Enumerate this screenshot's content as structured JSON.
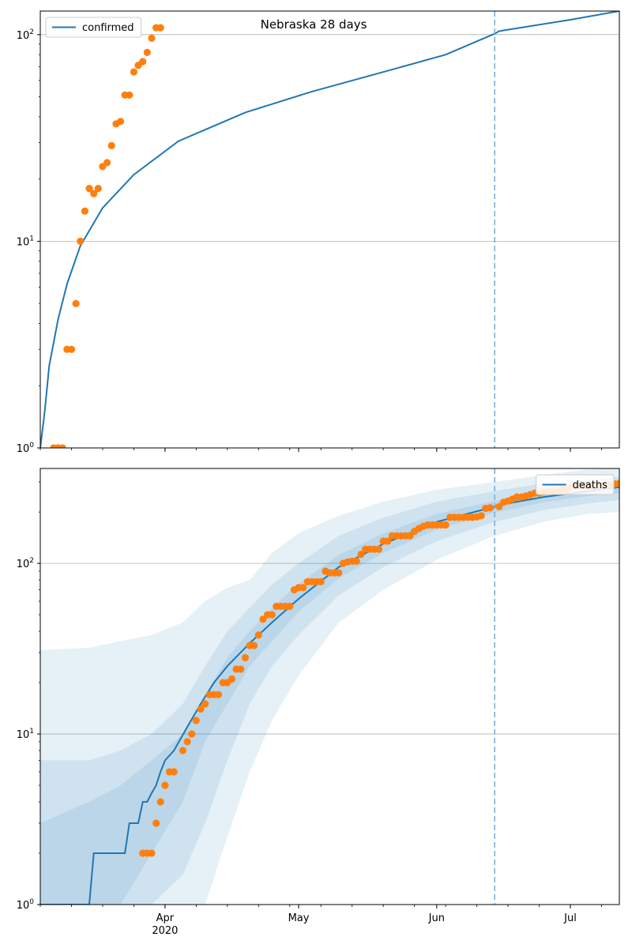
{
  "figure": {
    "title": "Nebraska 28 days",
    "colors": {
      "model_line": "#1f77b4",
      "observed_points": "#ff7f0e",
      "band": "#1f77b4",
      "forecast_marker": "#7fb0d4",
      "grid": "#b0b0b0"
    }
  },
  "chart_data": [
    {
      "type": "line",
      "scale": "log",
      "xlim": [
        "2020-03-04",
        "2020-07-12"
      ],
      "ylim": [
        1,
        130
      ],
      "grid": "horizontal",
      "legend_position": "top-left",
      "legend": [
        "confirmed"
      ],
      "x_ticks": [],
      "y_ticks": [
        {
          "value": 1,
          "base": "10",
          "exp": "0"
        },
        {
          "value": 10,
          "base": "10",
          "exp": "1"
        },
        {
          "value": 100,
          "base": "10",
          "exp": "2"
        }
      ],
      "forecast_start": "2020-06-14",
      "series": [
        {
          "name": "confirmed",
          "kind": "model_line",
          "x": [
            "2020-03-04",
            "2020-03-05",
            "2020-03-06",
            "2020-03-08",
            "2020-03-10",
            "2020-03-13",
            "2020-03-18",
            "2020-03-25",
            "2020-04-04",
            "2020-04-19",
            "2020-05-04",
            "2020-05-19",
            "2020-06-03",
            "2020-06-14",
            "2020-06-15",
            "2020-07-01",
            "2020-07-12"
          ],
          "y": [
            1,
            1.5,
            2.5,
            4.2,
            6.2,
            9.5,
            14.5,
            21,
            30.5,
            42,
            53,
            65,
            80,
            101,
            104,
            118,
            130
          ]
        },
        {
          "name": "",
          "kind": "observed",
          "x": [
            "2020-03-07",
            "2020-03-08",
            "2020-03-09",
            "2020-03-10",
            "2020-03-11",
            "2020-03-12",
            "2020-03-13",
            "2020-03-14",
            "2020-03-15",
            "2020-03-16",
            "2020-03-17",
            "2020-03-18",
            "2020-03-19",
            "2020-03-20",
            "2020-03-21",
            "2020-03-22",
            "2020-03-23",
            "2020-03-24",
            "2020-03-25",
            "2020-03-26",
            "2020-03-27",
            "2020-03-28",
            "2020-03-29",
            "2020-03-30",
            "2020-03-31"
          ],
          "y": [
            1,
            1,
            1,
            3,
            3,
            5,
            10,
            14,
            18,
            17,
            18,
            23,
            24,
            29,
            37,
            38,
            51,
            51,
            66,
            71,
            74,
            82,
            96,
            108,
            108
          ]
        }
      ]
    },
    {
      "type": "line",
      "scale": "log",
      "xlim": [
        "2020-03-04",
        "2020-07-12"
      ],
      "ylim": [
        1,
        360
      ],
      "grid": "horizontal",
      "legend_position": "top-right",
      "legend": [
        "deaths"
      ],
      "x_ticks": [
        {
          "date": "2020-04-01",
          "label": "Apr",
          "sublabel": "2020"
        },
        {
          "date": "2020-05-01",
          "label": "May",
          "sublabel": ""
        },
        {
          "date": "2020-06-01",
          "label": "Jun",
          "sublabel": ""
        },
        {
          "date": "2020-07-01",
          "label": "Jul",
          "sublabel": ""
        }
      ],
      "y_ticks": [
        {
          "value": 1,
          "base": "10",
          "exp": "0"
        },
        {
          "value": 10,
          "base": "10",
          "exp": "1"
        },
        {
          "value": 100,
          "base": "10",
          "exp": "2"
        }
      ],
      "forecast_start": "2020-06-14",
      "series": [
        {
          "name": "deaths",
          "kind": "model_line",
          "x": [
            "2020-03-04",
            "2020-03-15",
            "2020-03-16",
            "2020-03-23",
            "2020-03-24",
            "2020-03-26",
            "2020-03-27",
            "2020-03-28",
            "2020-03-29",
            "2020-03-30",
            "2020-03-31",
            "2020-04-01",
            "2020-04-03",
            "2020-04-06",
            "2020-04-09",
            "2020-04-12",
            "2020-04-15",
            "2020-04-20",
            "2020-04-25",
            "2020-05-01",
            "2020-05-10",
            "2020-05-20",
            "2020-06-01",
            "2020-06-14",
            "2020-06-15",
            "2020-06-25",
            "2020-07-05",
            "2020-07-12"
          ],
          "y": [
            1,
            1,
            2,
            2,
            3,
            3,
            4,
            4,
            4.5,
            5,
            6,
            7,
            8,
            11,
            15,
            20,
            25,
            34,
            45,
            62,
            95,
            130,
            175,
            215,
            220,
            245,
            265,
            280
          ]
        },
        {
          "name": "",
          "kind": "observed",
          "x": [
            "2020-03-27",
            "2020-03-28",
            "2020-03-29",
            "2020-03-30",
            "2020-03-31",
            "2020-04-01",
            "2020-04-02",
            "2020-04-03",
            "2020-04-05",
            "2020-04-06",
            "2020-04-07",
            "2020-04-08",
            "2020-04-09",
            "2020-04-10",
            "2020-04-11",
            "2020-04-12",
            "2020-04-13",
            "2020-04-14",
            "2020-04-15",
            "2020-04-16",
            "2020-04-17",
            "2020-04-18",
            "2020-04-19",
            "2020-04-20",
            "2020-04-21",
            "2020-04-22",
            "2020-04-23",
            "2020-04-24",
            "2020-04-25",
            "2020-04-26",
            "2020-04-27",
            "2020-04-28",
            "2020-04-29",
            "2020-04-30",
            "2020-05-01",
            "2020-05-02",
            "2020-05-03",
            "2020-05-04",
            "2020-05-05",
            "2020-05-06",
            "2020-05-07",
            "2020-05-08",
            "2020-05-09",
            "2020-05-10",
            "2020-05-11",
            "2020-05-12",
            "2020-05-13",
            "2020-05-14",
            "2020-05-15",
            "2020-05-16",
            "2020-05-17",
            "2020-05-18",
            "2020-05-19",
            "2020-05-20",
            "2020-05-21",
            "2020-05-22",
            "2020-05-23",
            "2020-05-24",
            "2020-05-25",
            "2020-05-26",
            "2020-05-27",
            "2020-05-28",
            "2020-05-29",
            "2020-05-30",
            "2020-05-31",
            "2020-06-01",
            "2020-06-02",
            "2020-06-03",
            "2020-06-04",
            "2020-06-05",
            "2020-06-06",
            "2020-06-07",
            "2020-06-08",
            "2020-06-09",
            "2020-06-10",
            "2020-06-11",
            "2020-06-12",
            "2020-06-13",
            "2020-06-15",
            "2020-06-16",
            "2020-06-17",
            "2020-06-18",
            "2020-06-19",
            "2020-06-20",
            "2020-06-21",
            "2020-06-22",
            "2020-06-23",
            "2020-06-24",
            "2020-06-25",
            "2020-06-26",
            "2020-06-27",
            "2020-06-28",
            "2020-06-29",
            "2020-06-30",
            "2020-07-01",
            "2020-07-02",
            "2020-07-03",
            "2020-07-04",
            "2020-07-05",
            "2020-07-06",
            "2020-07-07",
            "2020-07-08",
            "2020-07-09",
            "2020-07-10",
            "2020-07-11",
            "2020-07-12"
          ],
          "y": [
            2,
            2,
            2,
            3,
            4,
            5,
            6,
            6,
            8,
            9,
            10,
            12,
            14,
            15,
            17,
            17,
            17,
            20,
            20,
            21,
            24,
            24,
            28,
            33,
            33,
            38,
            47,
            50,
            50,
            56,
            56,
            56,
            56,
            70,
            72,
            72,
            78,
            78,
            78,
            78,
            90,
            88,
            88,
            88,
            100,
            102,
            103,
            103,
            113,
            121,
            121,
            121,
            121,
            135,
            135,
            145,
            145,
            145,
            145,
            145,
            154,
            160,
            165,
            168,
            168,
            168,
            168,
            168,
            186,
            186,
            186,
            186,
            186,
            186,
            187,
            190,
            210,
            212,
            215,
            228,
            232,
            238,
            245,
            245,
            248,
            253,
            258,
            258,
            262,
            265,
            265,
            265,
            270,
            270,
            280,
            285,
            285,
            285,
            285,
            285,
            285,
            287,
            288,
            290,
            292,
            295
          ]
        }
      ],
      "bands": [
        {
          "level": "outer",
          "x": [
            "2020-03-04",
            "2020-03-15",
            "2020-03-22",
            "2020-03-29",
            "2020-04-05",
            "2020-04-10",
            "2020-04-15",
            "2020-04-20",
            "2020-04-25",
            "2020-05-01",
            "2020-05-10",
            "2020-05-20",
            "2020-06-01",
            "2020-06-14",
            "2020-06-25",
            "2020-07-05",
            "2020-07-12"
          ],
          "lower": [
            1,
            1,
            1,
            1,
            1,
            1,
            2.5,
            6,
            12,
            22,
            45,
            70,
            105,
            145,
            175,
            195,
            200
          ],
          "upper": [
            31,
            32,
            35,
            38,
            45,
            60,
            72,
            80,
            115,
            150,
            190,
            230,
            270,
            300,
            330,
            355,
            360
          ]
        },
        {
          "level": "mid",
          "x": [
            "2020-03-04",
            "2020-03-15",
            "2020-03-22",
            "2020-03-29",
            "2020-04-05",
            "2020-04-10",
            "2020-04-15",
            "2020-04-20",
            "2020-04-25",
            "2020-05-01",
            "2020-05-10",
            "2020-05-20",
            "2020-06-01",
            "2020-06-14",
            "2020-06-25",
            "2020-07-05",
            "2020-07-12"
          ],
          "lower": [
            1,
            1,
            1,
            1,
            1.5,
            3,
            7,
            15,
            25,
            38,
            65,
            95,
            135,
            175,
            205,
            225,
            235
          ],
          "upper": [
            7,
            7,
            8,
            10,
            15,
            25,
            40,
            55,
            75,
            100,
            145,
            185,
            230,
            265,
            295,
            310,
            320
          ]
        },
        {
          "level": "inner",
          "x": [
            "2020-03-04",
            "2020-03-15",
            "2020-03-22",
            "2020-03-29",
            "2020-04-05",
            "2020-04-10",
            "2020-04-15",
            "2020-04-20",
            "2020-04-25",
            "2020-05-01",
            "2020-05-10",
            "2020-05-20",
            "2020-06-01",
            "2020-06-14",
            "2020-06-25",
            "2020-07-05",
            "2020-07-12"
          ],
          "lower": [
            1,
            1,
            1,
            2,
            4,
            9,
            15,
            25,
            35,
            52,
            82,
            115,
            158,
            198,
            228,
            248,
            258
          ],
          "upper": [
            3,
            4,
            5,
            7,
            10,
            17,
            28,
            40,
            55,
            76,
            112,
            150,
            195,
            232,
            260,
            280,
            292
          ]
        }
      ]
    }
  ]
}
